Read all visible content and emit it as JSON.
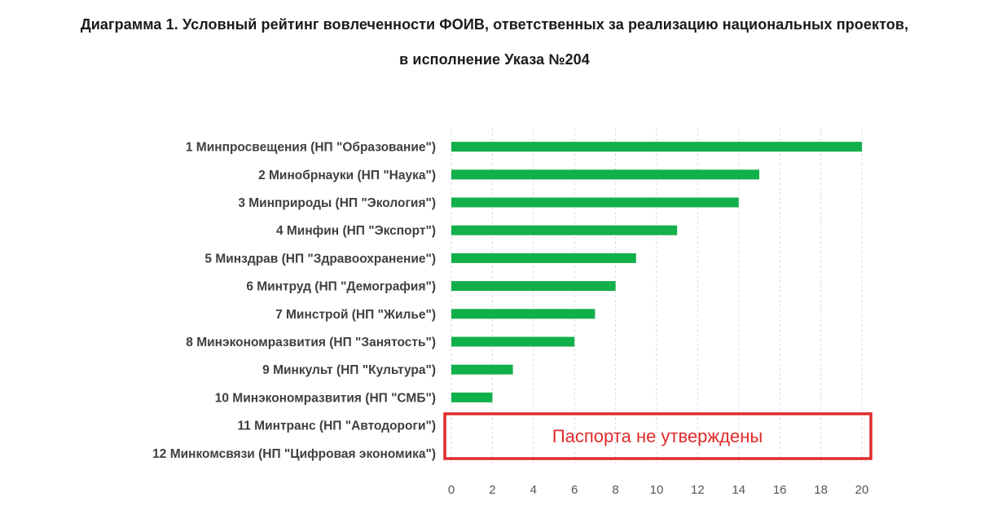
{
  "chart_data": {
    "type": "bar",
    "orientation": "horizontal",
    "title": "Диаграмма 1. Условный рейтинг вовлеченности ФОИВ, ответственных за реализацию национальных проектов,",
    "subtitle": "в исполнение Указа №204",
    "categories": [
      "1 Минпросвещения (НП \"Образование\")",
      "2 Минобрнауки (НП \"Наука\")",
      "3 Минприроды (НП \"Экология\")",
      "4 Минфин (НП \"Экспорт\")",
      "5 Минздрав (НП \"Здравоохранение\")",
      "6 Минтруд (НП \"Демография\")",
      "7 Минстрой (НП \"Жилье\")",
      "8 Минэкономразвития (НП \"Занятость\")",
      "9 Минкульт (НП \"Культура\")",
      "10 Минэкономразвития (НП \"СМБ\")",
      "11 Минтранс (НП \"Автодороги\")",
      "12 Минкомсвязи (НП \"Цифровая экономика\")"
    ],
    "values": [
      20,
      15,
      14,
      11,
      9,
      8,
      7,
      6,
      3,
      2,
      null,
      null
    ],
    "xlim": [
      0,
      20
    ],
    "xticks": [
      0,
      2,
      4,
      6,
      8,
      10,
      12,
      14,
      16,
      18,
      20
    ],
    "grid": true,
    "bar_color": "#12b04a",
    "annotation": {
      "text": "Паспорта не утверждены",
      "color": "#e02b2b"
    }
  }
}
